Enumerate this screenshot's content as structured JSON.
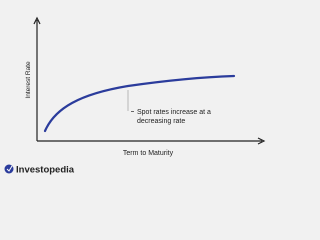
{
  "axes": {
    "y_label": "Interest Rate",
    "x_label": "Term to Maturity"
  },
  "annotation": {
    "lines": [
      "Spot rates increase at a",
      "decreasing rate"
    ]
  },
  "footer": {
    "brand": "Investopedia"
  }
}
